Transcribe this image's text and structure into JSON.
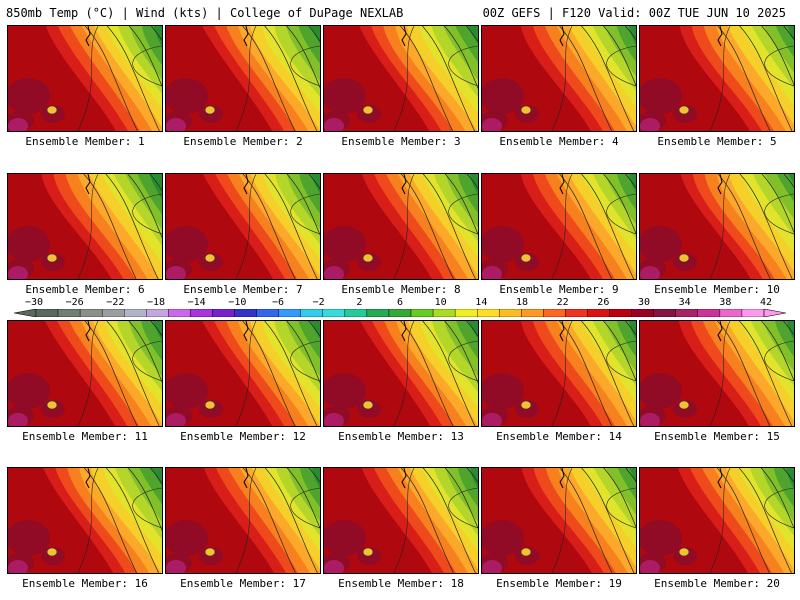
{
  "header": {
    "left": "850mb Temp (°C) | Wind (kts) | College of DuPage NEXLAB",
    "right": "00Z GEFS | F120 Valid: 00Z TUE JUN 10 2025"
  },
  "caption_prefix": "Ensemble Member:",
  "members": [
    {
      "number": "1",
      "warm": 1.0
    },
    {
      "number": "2",
      "warm": 0.9
    },
    {
      "number": "3",
      "warm": 0.85
    },
    {
      "number": "4",
      "warm": 1.05
    },
    {
      "number": "5",
      "warm": 1.1
    },
    {
      "number": "6",
      "warm": 0.75
    },
    {
      "number": "7",
      "warm": 0.95
    },
    {
      "number": "8",
      "warm": 1.0
    },
    {
      "number": "9",
      "warm": 1.05
    },
    {
      "number": "10",
      "warm": 1.15
    },
    {
      "number": "11",
      "warm": 0.95
    },
    {
      "number": "12",
      "warm": 0.9
    },
    {
      "number": "13",
      "warm": 0.9
    },
    {
      "number": "14",
      "warm": 1.05
    },
    {
      "number": "15",
      "warm": 1.05
    },
    {
      "number": "16",
      "warm": 0.85
    },
    {
      "number": "17",
      "warm": 1.0
    },
    {
      "number": "18",
      "warm": 1.0
    },
    {
      "number": "19",
      "warm": 1.1
    },
    {
      "number": "20",
      "warm": 1.0
    }
  ],
  "colorbar": {
    "labels": [
      "−30",
      "−26",
      "−22",
      "−18",
      "−14",
      "−10",
      "−6",
      "−2",
      "2",
      "6",
      "10",
      "14",
      "18",
      "22",
      "26",
      "30",
      "34",
      "38",
      "42"
    ],
    "colors": [
      "#5a6a5a",
      "#6f7f70",
      "#889088",
      "#9a9ea0",
      "#b0b4c8",
      "#c3a6e0",
      "#cc66ee",
      "#aa33dd",
      "#7722cc",
      "#3333cc",
      "#3366ee",
      "#3399ff",
      "#33ccee",
      "#33dddd",
      "#22cc99",
      "#22aa55",
      "#33aa33",
      "#66cc22",
      "#aadd22",
      "#eeee22",
      "#ffdd22",
      "#ffbb22",
      "#ff9922",
      "#ff6622",
      "#ee3322",
      "#dd1111",
      "#bb0011",
      "#990022",
      "#881144",
      "#aa2266",
      "#cc3399",
      "#ee66cc",
      "#ff99ee"
    ]
  }
}
